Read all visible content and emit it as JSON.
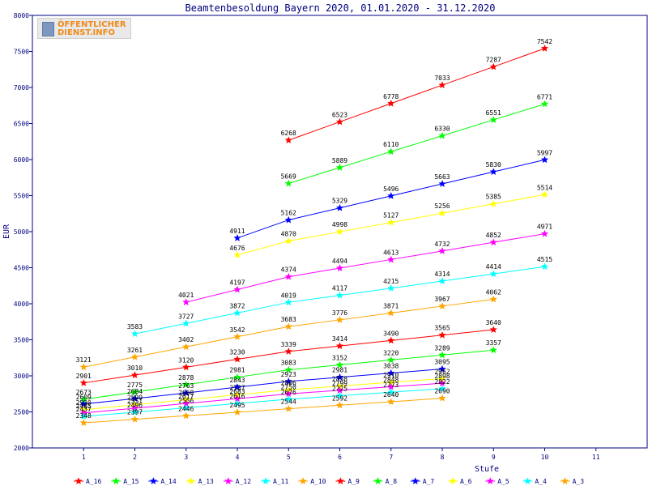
{
  "logo": {
    "line1": "ÖFFENTLICHER",
    "line2": "DIENST.INFO"
  },
  "colors": {
    "axis": "#000080",
    "labels": "#000080",
    "grid": "#e8e8e8"
  },
  "chart_data": {
    "type": "line",
    "title": "Beamtenbesoldung Bayern 2020, 01.01.2020 - 31.12.2020",
    "xlabel": "Stufe",
    "ylabel": "EUR",
    "xlim": [
      0,
      12
    ],
    "ylim": [
      2000,
      8000
    ],
    "x_ticks": [
      1,
      2,
      3,
      4,
      5,
      6,
      7,
      8,
      9,
      10,
      11
    ],
    "y_ticks": [
      2000,
      2500,
      3000,
      3500,
      4000,
      4500,
      5000,
      5500,
      6000,
      6500,
      7000,
      7500,
      8000
    ],
    "legend_position": "bottom",
    "series": [
      {
        "name": "A_16",
        "color": "#ff0000",
        "x": [
          5,
          6,
          7,
          8,
          9,
          10
        ],
        "values": [
          6268,
          6523,
          6778,
          7033,
          7287,
          7542
        ]
      },
      {
        "name": "A_15",
        "color": "#00ff00",
        "x": [
          5,
          6,
          7,
          8,
          9,
          10
        ],
        "values": [
          5669,
          5889,
          6110,
          6330,
          6551,
          6771
        ]
      },
      {
        "name": "A_14",
        "color": "#0000ff",
        "x": [
          4,
          5,
          6,
          7,
          8,
          9,
          10
        ],
        "values": [
          4911,
          5162,
          5329,
          5496,
          5663,
          5830,
          5997
        ]
      },
      {
        "name": "A_13",
        "color": "#ffff00",
        "x": [
          4,
          5,
          6,
          7,
          8,
          9,
          10
        ],
        "values": [
          4676,
          4870,
          4998,
          5127,
          5256,
          5385,
          5514
        ]
      },
      {
        "name": "A_12",
        "color": "#ff00ff",
        "x": [
          3,
          4,
          5,
          6,
          7,
          8,
          9,
          10
        ],
        "values": [
          4021,
          4197,
          4374,
          4494,
          4613,
          4732,
          4852,
          4971
        ]
      },
      {
        "name": "A_11",
        "color": "#00ffff",
        "x": [
          2,
          3,
          4,
          5,
          6,
          7,
          8,
          9,
          10
        ],
        "values": [
          3583,
          3727,
          3872,
          4019,
          4117,
          4215,
          4314,
          4414,
          4515
        ]
      },
      {
        "name": "A_10",
        "color": "#ffa500",
        "x": [
          1,
          2,
          3,
          4,
          5,
          6,
          7,
          8,
          9
        ],
        "values": [
          3121,
          3261,
          3402,
          3542,
          3683,
          3776,
          3871,
          3967,
          4062
        ]
      },
      {
        "name": "A_9",
        "color": "#ff0000",
        "x": [
          1,
          2,
          3,
          4,
          5,
          6,
          7,
          8,
          9
        ],
        "values": [
          2901,
          3010,
          3120,
          3230,
          3339,
          3414,
          3490,
          3565,
          3640
        ]
      },
      {
        "name": "A_8",
        "color": "#00ff00",
        "x": [
          1,
          2,
          3,
          4,
          5,
          6,
          7,
          8,
          9
        ],
        "values": [
          2673,
          2775,
          2878,
          2981,
          3083,
          3152,
          3220,
          3289,
          3357
        ]
      },
      {
        "name": "A_7",
        "color": "#0000ff",
        "x": [
          1,
          2,
          3,
          4,
          5,
          6,
          7,
          8
        ],
        "values": [
          2609,
          2684,
          2763,
          2843,
          2923,
          2981,
          3038,
          3095
        ]
      },
      {
        "name": "A_6",
        "color": "#ffff00",
        "x": [
          1,
          2,
          3,
          4,
          5,
          6,
          7,
          8
        ],
        "values": [
          2530,
          2599,
          2668,
          2737,
          2806,
          2858,
          2910,
          2962
        ]
      },
      {
        "name": "A_5",
        "color": "#ff00ff",
        "x": [
          1,
          2,
          3,
          4,
          5,
          6,
          7,
          8
        ],
        "values": [
          2485,
          2551,
          2617,
          2683,
          2750,
          2799,
          2848,
          2898
        ]
      },
      {
        "name": "A_4",
        "color": "#00ffff",
        "x": [
          1,
          2,
          3,
          4,
          5,
          6,
          7,
          8
        ],
        "values": [
          2437,
          2496,
          2556,
          2616,
          2676,
          2725,
          2773,
          2822
        ]
      },
      {
        "name": "A_3",
        "color": "#ffa500",
        "x": [
          1,
          2,
          3,
          4,
          5,
          6,
          7,
          8
        ],
        "values": [
          2348,
          2397,
          2446,
          2495,
          2544,
          2592,
          2640,
          2690
        ]
      }
    ]
  }
}
